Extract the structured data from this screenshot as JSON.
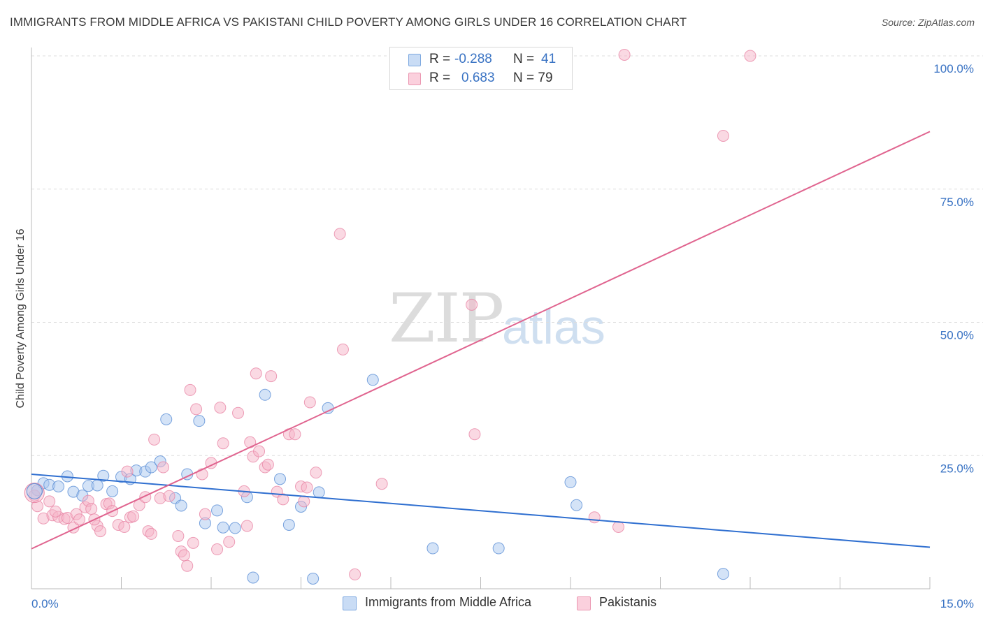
{
  "title": "IMMIGRANTS FROM MIDDLE AFRICA VS PAKISTANI CHILD POVERTY AMONG GIRLS UNDER 16 CORRELATION CHART",
  "source": "Source: ZipAtlas.com",
  "watermark": {
    "zip": "ZIP",
    "atlas": "atlas"
  },
  "stats": [
    {
      "r_label": "R =",
      "r_value": "-0.288",
      "n_label": "N =",
      "n_value": "41",
      "color": "#a9c8ef"
    },
    {
      "r_label": "R =",
      "r_value": "0.683",
      "n_label": "N = 79",
      "n_value": "",
      "color": "#f5b3c8"
    }
  ],
  "legend": [
    {
      "label": "Immigrants from Middle Africa",
      "color": "#a9c8ef"
    },
    {
      "label": "Pakistanis",
      "color": "#f5b3c8"
    }
  ],
  "chart_data": {
    "type": "scatter",
    "title": "IMMIGRANTS FROM MIDDLE AFRICA VS PAKISTANI CHILD POVERTY AMONG GIRLS UNDER 16 CORRELATION CHART",
    "xlabel": "",
    "ylabel": "Child Poverty Among Girls Under 16",
    "xlim": [
      0,
      15
    ],
    "ylim": [
      0,
      102
    ],
    "x_tick_labels": [
      "0.0%",
      "15.0%"
    ],
    "y_ticks": [
      25,
      50,
      75,
      100
    ],
    "y_tick_labels": [
      "25.0%",
      "50.0%",
      "75.0%",
      "100.0%"
    ],
    "grid": true,
    "legend_position": "bottom",
    "series": [
      {
        "name": "Immigrants from Middle Africa",
        "color": "#5b8fd6",
        "fill": "#a9c8ef",
        "trend": {
          "x": [
            0,
            15
          ],
          "y": [
            21.5,
            7.8
          ],
          "color": "#2f6fd0"
        },
        "points": [
          [
            0.1,
            18.5
          ],
          [
            0.2,
            19.8
          ],
          [
            0.3,
            19.5
          ],
          [
            0.45,
            19.2
          ],
          [
            0.6,
            21.1
          ],
          [
            0.7,
            18.2
          ],
          [
            0.85,
            17.5
          ],
          [
            0.95,
            19.3
          ],
          [
            1.1,
            19.4
          ],
          [
            1.2,
            21.2
          ],
          [
            1.35,
            18.3
          ],
          [
            1.5,
            21.0
          ],
          [
            1.65,
            20.6
          ],
          [
            1.75,
            22.2
          ],
          [
            1.9,
            22.0
          ],
          [
            2.0,
            22.8
          ],
          [
            2.15,
            23.9
          ],
          [
            2.25,
            31.8
          ],
          [
            2.4,
            17.0
          ],
          [
            2.5,
            15.6
          ],
          [
            2.6,
            21.5
          ],
          [
            2.8,
            31.5
          ],
          [
            2.9,
            12.3
          ],
          [
            3.1,
            14.7
          ],
          [
            3.2,
            11.5
          ],
          [
            3.4,
            11.4
          ],
          [
            3.6,
            17.2
          ],
          [
            3.7,
            2.1
          ],
          [
            3.9,
            36.4
          ],
          [
            4.15,
            20.6
          ],
          [
            4.3,
            12.0
          ],
          [
            4.5,
            15.4
          ],
          [
            4.7,
            1.9
          ],
          [
            4.8,
            18.1
          ],
          [
            4.95,
            33.9
          ],
          [
            5.7,
            39.2
          ],
          [
            6.7,
            7.6
          ],
          [
            7.8,
            7.6
          ],
          [
            9.0,
            20.0
          ],
          [
            9.1,
            15.7
          ],
          [
            11.55,
            2.8
          ]
        ]
      },
      {
        "name": "Pakistanis",
        "color": "#e987a6",
        "fill": "#f5b3c8",
        "trend": {
          "x": [
            0,
            15
          ],
          "y": [
            7.5,
            85.8
          ],
          "color": "#e0648f"
        },
        "points": [
          [
            0.05,
            17.5
          ],
          [
            0.1,
            15.5
          ],
          [
            0.2,
            13.2
          ],
          [
            0.3,
            16.4
          ],
          [
            0.35,
            13.8
          ],
          [
            0.45,
            13.5
          ],
          [
            0.55,
            13.1
          ],
          [
            0.6,
            13.3
          ],
          [
            0.7,
            11.5
          ],
          [
            0.75,
            14.0
          ],
          [
            0.8,
            13.0
          ],
          [
            0.9,
            15.3
          ],
          [
            0.95,
            16.5
          ],
          [
            1.0,
            15.0
          ],
          [
            1.1,
            11.8
          ],
          [
            1.15,
            10.8
          ],
          [
            1.25,
            15.9
          ],
          [
            1.3,
            16.0
          ],
          [
            1.35,
            14.6
          ],
          [
            1.45,
            12.0
          ],
          [
            1.55,
            11.6
          ],
          [
            1.6,
            22.0
          ],
          [
            1.65,
            13.4
          ],
          [
            1.7,
            13.6
          ],
          [
            1.8,
            15.7
          ],
          [
            1.9,
            17.2
          ],
          [
            1.95,
            10.8
          ],
          [
            2.0,
            10.3
          ],
          [
            2.05,
            28.0
          ],
          [
            2.15,
            17.0
          ],
          [
            2.2,
            22.8
          ],
          [
            2.3,
            17.4
          ],
          [
            2.45,
            9.9
          ],
          [
            2.5,
            7.0
          ],
          [
            2.55,
            6.3
          ],
          [
            2.6,
            4.3
          ],
          [
            2.65,
            37.3
          ],
          [
            2.7,
            8.6
          ],
          [
            2.75,
            33.7
          ],
          [
            2.85,
            21.5
          ],
          [
            2.9,
            14.0
          ],
          [
            3.0,
            23.6
          ],
          [
            3.1,
            7.4
          ],
          [
            3.15,
            34.0
          ],
          [
            3.2,
            27.3
          ],
          [
            3.3,
            8.8
          ],
          [
            3.45,
            33.0
          ],
          [
            3.55,
            18.3
          ],
          [
            3.6,
            11.8
          ],
          [
            3.65,
            27.5
          ],
          [
            3.7,
            24.8
          ],
          [
            3.75,
            40.4
          ],
          [
            3.8,
            25.8
          ],
          [
            3.9,
            22.8
          ],
          [
            3.95,
            23.3
          ],
          [
            4.0,
            39.9
          ],
          [
            4.1,
            18.2
          ],
          [
            4.2,
            16.8
          ],
          [
            4.3,
            29.0
          ],
          [
            4.4,
            29.0
          ],
          [
            4.5,
            19.2
          ],
          [
            4.55,
            16.4
          ],
          [
            4.6,
            19.0
          ],
          [
            4.65,
            35.0
          ],
          [
            4.75,
            21.8
          ],
          [
            5.15,
            66.6
          ],
          [
            5.2,
            44.9
          ],
          [
            5.4,
            2.7
          ],
          [
            5.85,
            19.7
          ],
          [
            6.9,
            100.0
          ],
          [
            7.35,
            53.3
          ],
          [
            7.4,
            29.0
          ],
          [
            9.4,
            13.4
          ],
          [
            9.8,
            11.6
          ],
          [
            9.9,
            100.2
          ],
          [
            11.55,
            85.0
          ],
          [
            12.0,
            100.0
          ],
          [
            0.4,
            14.5
          ],
          [
            1.05,
            13.0
          ]
        ]
      }
    ]
  }
}
